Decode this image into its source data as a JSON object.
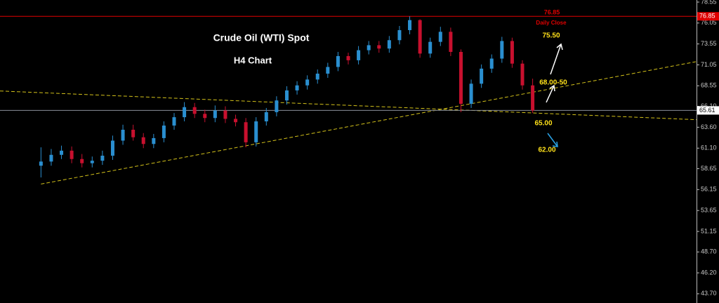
{
  "chart_data": {
    "type": "candlestick",
    "title": "Crude Oil (WTI) Spot",
    "subtitle": "H4 Chart",
    "up_color": "#2a8fd0",
    "down_color": "#c8102e",
    "xlim": [
      -4,
      64
    ],
    "ylim": [
      42.6,
      78.8
    ],
    "yticks": [
      78.55,
      76.05,
      73.55,
      71.05,
      68.55,
      {
        "value": 66.1,
        "label": "66.10"
      },
      {
        "value": 63.6,
        "label": "63.60"
      },
      {
        "value": 61.1,
        "label": "61.10"
      },
      58.65,
      56.15,
      53.65,
      51.15,
      {
        "value": 48.7,
        "label": "48.70"
      },
      {
        "value": 46.2,
        "label": "46.20"
      },
      {
        "value": 43.7,
        "label": "43.70"
      }
    ],
    "open": [
      59.0,
      59.5,
      60.3,
      60.8,
      59.8,
      59.3,
      59.6,
      60.2,
      62.0,
      63.3,
      62.4,
      61.6,
      62.3,
      63.8,
      64.8,
      66.0,
      65.2,
      64.7,
      65.6,
      64.6,
      64.2,
      61.8,
      64.3,
      65.4,
      66.8,
      68.0,
      68.6,
      69.3,
      70.0,
      70.8,
      72.1,
      71.6,
      72.8,
      73.4,
      73.0,
      74.0,
      75.2,
      76.4,
      72.4,
      73.8,
      75.0,
      72.6,
      66.4,
      68.8,
      70.6,
      71.8,
      73.9,
      71.2,
      68.6
    ],
    "high": [
      61.2,
      61.0,
      61.4,
      61.3,
      60.4,
      60.1,
      60.8,
      62.6,
      63.9,
      63.9,
      62.9,
      62.8,
      64.3,
      65.3,
      66.6,
      66.5,
      65.7,
      66.2,
      66.1,
      65.1,
      64.7,
      64.8,
      65.9,
      67.3,
      68.5,
      69.1,
      69.8,
      70.5,
      71.3,
      72.6,
      72.5,
      73.3,
      73.9,
      73.9,
      74.5,
      75.7,
      76.85,
      76.5,
      74.3,
      75.6,
      75.5,
      72.9,
      69.3,
      71.1,
      72.3,
      74.4,
      74.3,
      71.6,
      69.4
    ],
    "low": [
      57.6,
      59.0,
      59.8,
      59.3,
      58.8,
      58.8,
      59.1,
      59.7,
      61.5,
      62.0,
      61.1,
      61.1,
      61.8,
      63.3,
      64.3,
      64.7,
      64.2,
      64.2,
      64.1,
      63.7,
      61.2,
      61.3,
      63.8,
      64.9,
      66.3,
      67.5,
      68.1,
      68.8,
      69.5,
      70.3,
      71.1,
      71.1,
      72.3,
      72.5,
      72.5,
      73.5,
      74.7,
      71.9,
      71.9,
      73.3,
      72.1,
      65.4,
      65.9,
      68.3,
      70.1,
      71.3,
      70.7,
      68.1,
      65.3
    ],
    "close": [
      59.5,
      60.3,
      60.8,
      59.8,
      59.3,
      59.6,
      60.2,
      62.0,
      63.3,
      62.4,
      61.6,
      62.3,
      63.8,
      64.8,
      66.0,
      65.2,
      64.7,
      65.6,
      64.6,
      64.2,
      61.8,
      64.3,
      65.4,
      66.8,
      68.0,
      68.6,
      69.3,
      70.0,
      70.8,
      72.1,
      71.6,
      72.8,
      73.4,
      73.0,
      74.0,
      75.2,
      76.4,
      72.4,
      73.8,
      75.0,
      72.6,
      66.4,
      68.8,
      70.6,
      71.8,
      73.9,
      71.2,
      68.6,
      65.6
    ],
    "levels": [
      {
        "value": 76.85,
        "color": "#e00000"
      },
      {
        "value": 65.61,
        "color": "#8a8f9a"
      }
    ],
    "trendlines": [
      {
        "x": [
          -4,
          64
        ],
        "y": [
          67.93,
          64.5
        ],
        "color": "#d4c21a"
      },
      {
        "x": [
          0,
          64
        ],
        "y": [
          56.81,
          71.44
        ],
        "color": "#d4c21a"
      }
    ],
    "annotations": {
      "daily_close": "Daily Close",
      "target_up": "75.50",
      "resistance": "68.00-50",
      "support": "65.00",
      "target_down": "62.00"
    }
  }
}
